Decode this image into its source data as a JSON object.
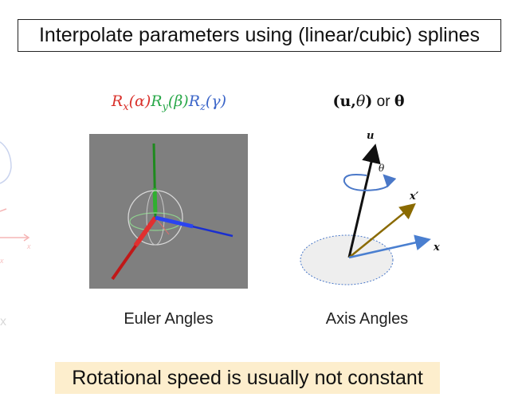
{
  "title": "Interpolate parameters using (linear/cubic) splines",
  "euler": {
    "formula": [
      {
        "base": "R",
        "sub": "x",
        "arg": "(α)",
        "color": "#d9302a"
      },
      {
        "base": "R",
        "sub": "y",
        "arg": "(β)",
        "color": "#2aa84a"
      },
      {
        "base": "R",
        "sub": "z",
        "arg": "(γ)",
        "color": "#3a64c8"
      }
    ],
    "caption": "Euler Angles"
  },
  "axis_angle": {
    "formula_u": "u",
    "formula_theta": "θ",
    "formula_or": "or",
    "formula_bold_theta": "θ",
    "caption": "Axis Angles",
    "labels": {
      "u": "u",
      "theta": "θ",
      "x_prime": "x′",
      "x": "x"
    },
    "colors": {
      "u_axis": "#111111",
      "x_prime_axis": "#8a6a00",
      "x_axis": "#4a7fd0",
      "disc": "#eeeeee",
      "disc_border": "#4a78c8",
      "rotation_arrow": "#4a78c8"
    }
  },
  "faded_labels": {
    "x1": "x",
    "x2": "x",
    "x3": "x"
  },
  "note": "Rotational speed is usually not constant",
  "colors": {
    "note_bg": "#fdeecd",
    "euler_bg": "#7f7f7f"
  }
}
